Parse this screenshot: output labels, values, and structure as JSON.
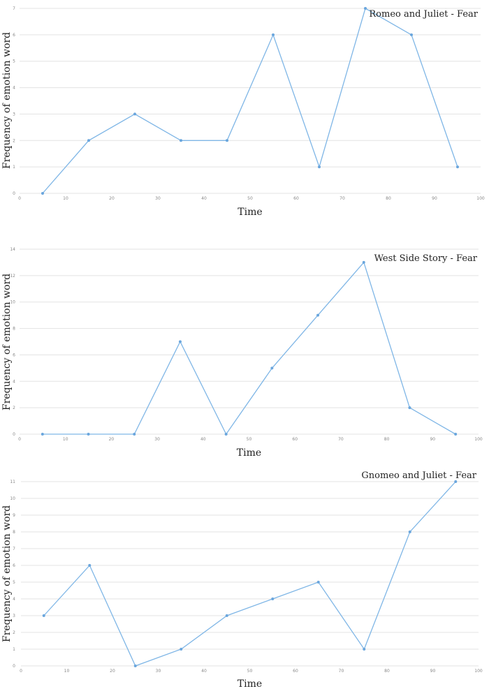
{
  "chart_data": [
    {
      "type": "line",
      "title": "Romeo and Juliet - Fear",
      "xlabel": "Time",
      "ylabel": "Frequency of emotion word",
      "xlim": [
        0,
        100
      ],
      "ylim": [
        0,
        7
      ],
      "x_ticks": [
        0,
        10,
        20,
        30,
        40,
        50,
        60,
        70,
        80,
        90,
        100
      ],
      "y_ticks": [
        0,
        1,
        2,
        3,
        4,
        5,
        6,
        7
      ],
      "grid": true,
      "color": "#7fb6e6",
      "x": [
        5,
        15,
        25,
        35,
        45,
        55,
        65,
        75,
        85,
        95
      ],
      "y": [
        0,
        2,
        3,
        2,
        2,
        6,
        1,
        7,
        6,
        1
      ]
    },
    {
      "type": "line",
      "title": "West Side Story - Fear",
      "xlabel": "Time",
      "ylabel": "Frequency of emotion word",
      "xlim": [
        0,
        100
      ],
      "ylim": [
        0,
        14
      ],
      "x_ticks": [
        0,
        10,
        20,
        30,
        40,
        50,
        60,
        70,
        80,
        90,
        100
      ],
      "y_ticks": [
        0,
        2,
        4,
        6,
        8,
        10,
        12,
        14
      ],
      "grid": true,
      "color": "#7fb6e6",
      "x": [
        5,
        15,
        25,
        35,
        45,
        55,
        65,
        75,
        85,
        95
      ],
      "y": [
        0,
        0,
        0,
        7,
        0,
        5,
        9,
        13,
        2,
        0
      ]
    },
    {
      "type": "line",
      "title": "Gnomeo and Juliet - Fear",
      "xlabel": "Time",
      "ylabel": "Frequency of emotion word",
      "xlim": [
        0,
        100
      ],
      "ylim": [
        0,
        11
      ],
      "x_ticks": [
        0,
        10,
        20,
        30,
        40,
        50,
        60,
        70,
        80,
        90,
        100
      ],
      "y_ticks": [
        0,
        1,
        2,
        3,
        4,
        5,
        6,
        7,
        8,
        9,
        10,
        11
      ],
      "grid": true,
      "color": "#7fb6e6",
      "x": [
        5,
        15,
        25,
        35,
        45,
        55,
        65,
        75,
        85,
        95
      ],
      "y": [
        3,
        6,
        0,
        1,
        3,
        4,
        5,
        1,
        8,
        11
      ]
    }
  ]
}
